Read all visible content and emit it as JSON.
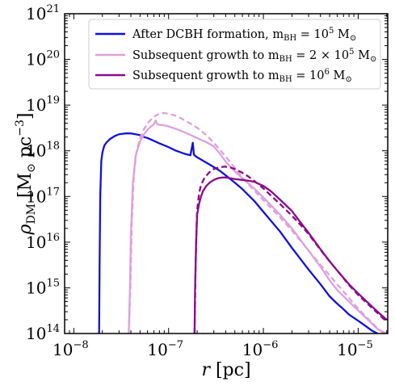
{
  "chart_data": {
    "type": "line",
    "xlabel": "r [pc]",
    "ylabel": "ρ_DM [M_⊙ pc^−3]",
    "x_scale": "log",
    "y_scale": "log",
    "xlim": [
      8e-09,
      2.05e-05
    ],
    "ylim": [
      100000000000000.0,
      1e+21
    ],
    "x_ticks": [
      {
        "mantissa": "10",
        "exp": "−8",
        "value": 1e-08
      },
      {
        "mantissa": "10",
        "exp": "−7",
        "value": 1e-07
      },
      {
        "mantissa": "10",
        "exp": "−6",
        "value": 1e-06
      },
      {
        "mantissa": "10",
        "exp": "−5",
        "value": 1e-05
      }
    ],
    "y_ticks": [
      {
        "mantissa": "10",
        "exp": "14",
        "value": 100000000000000.0
      },
      {
        "mantissa": "10",
        "exp": "15",
        "value": 1000000000000000.0
      },
      {
        "mantissa": "10",
        "exp": "16",
        "value": 1e+16
      },
      {
        "mantissa": "10",
        "exp": "17",
        "value": 1e+17
      },
      {
        "mantissa": "10",
        "exp": "18",
        "value": 1e+18
      },
      {
        "mantissa": "10",
        "exp": "19",
        "value": 1e+19
      },
      {
        "mantissa": "10",
        "exp": "20",
        "value": 1e+20
      },
      {
        "mantissa": "10",
        "exp": "21",
        "value": 1e+21
      }
    ],
    "legend_position": "top-right",
    "grid": false,
    "series": [
      {
        "name": "After DCBH formation, m_BH = 10^5 M_⊙",
        "color": "#1010e0",
        "style": "solid",
        "x": [
          1.85e-08,
          1.87e-08,
          1.9e-08,
          1.95e-08,
          2e-08,
          2.05e-08,
          2.1e-08,
          2.2e-08,
          2.4e-08,
          2.7e-08,
          3e-08,
          3.5e-08,
          4e-08,
          4.5e-08,
          5e-08,
          5.5e-08,
          6e-08,
          7e-08,
          8e-08,
          1e-07,
          1.2e-07,
          1.5e-07,
          1.7e-07,
          1.8e-07,
          1.85e-07,
          1.9e-07,
          2e-07,
          2.5e-07,
          3e-07,
          3.5e-07,
          4e-07,
          5e-07,
          6e-07,
          8e-07,
          1e-06,
          1.5e-06,
          2e-06,
          3e-06,
          4e-06,
          5e-06,
          6e-06,
          7e-06,
          8e-06,
          1e-05,
          1.2e-05,
          1.4e-05,
          1.6e-05
        ],
        "y": [
          100000000000000.0,
          3000000000000000.0,
          1e+17,
          6e+17,
          9e+17,
          1.1e+18,
          1.3e+18,
          1.5e+18,
          1.8e+18,
          2.1e+18,
          2.3e+18,
          2.4e+18,
          2.4e+18,
          2.3e+18,
          2.2e+18,
          2e+18,
          1.9e+18,
          1.65e+18,
          1.45e+18,
          1.2e+18,
          1e+18,
          8.5e+17,
          8e+17,
          1.5e+18,
          8.2e+17,
          7.8e+17,
          7.2e+17,
          5.5e+17,
          4.4e+17,
          3.6e+17,
          2.9e+17,
          2e+17,
          1.45e+17,
          8e+16,
          4.6e+16,
          1.7e+16,
          7500000000000000.0,
          2500000000000000.0,
          1200000000000000.0,
          650000000000000.0,
          450000000000000.0,
          340000000000000.0,
          260000000000000.0,
          190000000000000.0,
          145000000000000.0,
          115000000000000.0,
          100000000000000.0
        ]
      },
      {
        "name": "Subsequent growth to m_BH = 2 × 10^5 M_⊙",
        "color": "#dda0dd",
        "style": "solid",
        "x": [
          3.8e-08,
          3.9e-08,
          4e-08,
          4.2e-08,
          4.5e-08,
          5e-08,
          5.5e-08,
          6e-08,
          6.5e-08,
          7e-08,
          7.3e-08,
          7.6e-08,
          8e-08,
          9e-08,
          1e-07,
          1.2e-07,
          1.5e-07,
          2e-07,
          2.5e-07,
          3e-07,
          3.5e-07,
          4e-07,
          5e-07,
          6e-07,
          8e-07,
          1e-06,
          1.5e-06,
          2e-06,
          3e-06,
          4e-06,
          5e-06,
          6e-06,
          8e-06,
          1e-05,
          1.3e-05,
          1.6e-05,
          2e-05
        ],
        "y": [
          100000000000000.0,
          800000000000000.0,
          1.5e+16,
          2e+17,
          8e+17,
          1.6e+18,
          2.3e+18,
          2.9e+18,
          3.4e+18,
          3.8e+18,
          4.6e+18,
          3.8e+18,
          3.7e+18,
          3.6e+18,
          3.4e+18,
          3e+18,
          2.5e+18,
          1.9e+18,
          1.55e+18,
          1.25e+18,
          8.5e+17,
          5.8e+17,
          3.5e+17,
          2.5e+17,
          1.5e+17,
          9.5e+16,
          4e+16,
          2e+16,
          6500000000000000.0,
          2900000000000000.0,
          1450000000000000.0,
          900000000000000.0,
          500000000000000.0,
          320000000000000.0,
          190000000000000.0,
          125000000000000.0,
          100000000000000.0
        ]
      },
      {
        "name": "",
        "color": "#dda0dd",
        "style": "dashed",
        "x": [
          3.8e-08,
          3.95e-08,
          4.1e-08,
          4.3e-08,
          4.6e-08,
          5e-08,
          5.5e-08,
          6e-08,
          7e-08,
          8e-08,
          9e-08,
          1e-07,
          1.2e-07,
          1.5e-07,
          2e-07,
          2.5e-07,
          3e-07,
          4e-07,
          5e-07,
          6e-07,
          8e-07,
          1e-06,
          1.5e-06,
          2e-06,
          3e-06,
          4e-06,
          6e-06,
          8e-06,
          1e-05,
          1.3e-05,
          1.6e-05,
          2e-05
        ],
        "y": [
          100000000000000.0,
          1000000000000000.0,
          3e+16,
          3e+17,
          1e+18,
          1.9e+18,
          3e+18,
          4e+18,
          5.6e+18,
          6.5e+18,
          6.7e+18,
          6.5e+18,
          5.8e+18,
          4.6e+18,
          3.2e+18,
          2.2e+18,
          1.5e+18,
          7.5e+17,
          4.2e+17,
          2.6e+17,
          1.35e+17,
          8.3e+16,
          3.5e+16,
          1.8e+16,
          6500000000000000.0,
          3200000000000000.0,
          1200000000000000.0,
          600000000000000.0,
          350000000000000.0,
          200000000000000.0,
          130000000000000.0,
          90000000000000.0
        ]
      },
      {
        "name": "Subsequent growth to m_BH = 10^6 M_⊙",
        "color": "#8b0a8b",
        "style": "solid",
        "x": [
          1.88e-07,
          1.9e-07,
          1.95e-07,
          2e-07,
          2.1e-07,
          2.2e-07,
          2.3e-07,
          2.5e-07,
          2.7e-07,
          3e-07,
          3.3e-07,
          3.7e-07,
          4e-07,
          4.5e-07,
          5e-07,
          6e-07,
          7e-07,
          8e-07,
          1e-06,
          1.2e-06,
          1.5e-06,
          2e-06,
          2.5e-06,
          3e-06,
          4e-06,
          5e-06,
          6e-06,
          8e-06,
          1e-05,
          1.3e-05,
          1.6e-05,
          2e-05
        ],
        "y": [
          100000000000000.0,
          800000000000000.0,
          1e+16,
          4e+16,
          7e+16,
          1e+17,
          1.3e+17,
          1.7e+17,
          2e+17,
          2.3e+17,
          2.5e+17,
          2.6e+17,
          2.6e+17,
          2.5e+17,
          2.4e+17,
          2.3e+17,
          2.2e+17,
          2.1e+17,
          1.7e+17,
          1.3e+17,
          8.5e+16,
          4.8e+16,
          2.6e+16,
          1.6e+16,
          7000000000000000.0,
          3800000000000000.0,
          2400000000000000.0,
          1200000000000000.0,
          750000000000000.0,
          450000000000000.0,
          300000000000000.0,
          200000000000000.0
        ]
      },
      {
        "name": "",
        "color": "#8b0a8b",
        "style": "dashed",
        "x": [
          1.88e-07,
          1.92e-07,
          1.97e-07,
          2e-07,
          2.1e-07,
          2.2e-07,
          2.4e-07,
          2.7e-07,
          3e-07,
          3.5e-07,
          4e-07,
          4.5e-07,
          5e-07,
          6e-07,
          7e-07,
          8e-07,
          1e-06,
          1.2e-06,
          1.5e-06,
          2e-06,
          2.5e-06,
          3e-06,
          4e-06,
          5e-06,
          6e-06,
          8e-06,
          1e-05,
          1.3e-05,
          1.6e-05,
          2e-05
        ],
        "y": [
          100000000000000.0,
          2000000000000000.0,
          2e+16,
          5e+16,
          1.2e+17,
          1.8e+17,
          2.6e+17,
          3.4e+17,
          4e+17,
          4.4e+17,
          4.5e+17,
          4.3e+17,
          4e+17,
          3.3e+17,
          2.7e+17,
          2.2e+17,
          1.5e+17,
          1.05e+17,
          6.8e+16,
          3.8e+16,
          2.3e+16,
          1.5e+16,
          6800000000000000.0,
          3800000000000000.0,
          2400000000000000.0,
          1150000000000000.0,
          700000000000000.0,
          420000000000000.0,
          280000000000000.0,
          180000000000000.0
        ]
      }
    ]
  },
  "legend": [
    {
      "color": "#1010e0",
      "text": "After DCBH formation, m",
      "sub": "BH",
      "eq": " = 10",
      "sup": "5",
      "tail": " M",
      "sun_sub": "⊙"
    },
    {
      "color": "#dda0dd",
      "text": "Subsequent growth to m",
      "sub": "BH",
      "eq": " = 2 × 10",
      "sup": "5",
      "tail": " M",
      "sun_sub": "⊙"
    },
    {
      "color": "#8b0a8b",
      "text": "Subsequent growth to m",
      "sub": "BH",
      "eq": " = 10",
      "sup": "6",
      "tail": " M",
      "sun_sub": "⊙"
    }
  ],
  "axis_labels": {
    "x_main": "r",
    "x_unit": " [pc]",
    "y_main": "ρ",
    "y_sub": "DM",
    "y_unit_open": " [M",
    "y_unit_sun": "⊙",
    "y_unit_pc": " pc",
    "y_unit_exp": "−3",
    "y_unit_close": "]"
  }
}
